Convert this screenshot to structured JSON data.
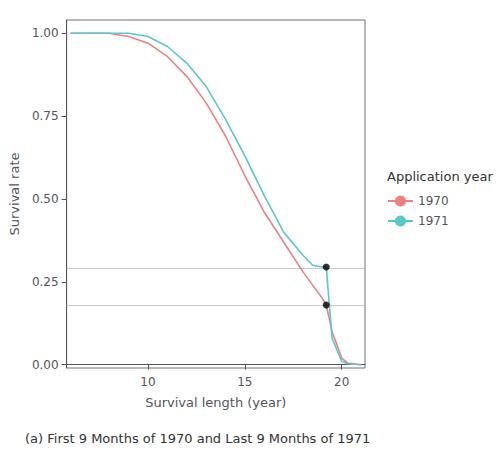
{
  "chart_data": {
    "type": "line",
    "xlabel": "Survival length (year)",
    "ylabel": "Survival rate",
    "caption": "(a) First 9 Months of 1970 and Last 9 Months of 1971",
    "legend_title": "Application year",
    "legend": "right",
    "grid": false,
    "x": [
      6,
      7,
      8,
      8.5,
      9,
      10,
      11,
      12,
      13,
      14,
      15,
      16,
      17,
      18,
      18.5,
      19,
      19.2,
      19.5,
      20,
      20.3,
      21
    ],
    "series": [
      {
        "name": "1970",
        "color": "#F08080",
        "values": [
          1.0,
          1.0,
          1.0,
          0.995,
          0.99,
          0.97,
          0.93,
          0.87,
          0.79,
          0.69,
          0.57,
          0.46,
          0.37,
          0.28,
          0.24,
          0.2,
          0.18,
          0.1,
          0.02,
          0.005,
          0.0
        ]
      },
      {
        "name": "1971",
        "color": "#5BC8C8",
        "values": [
          1.0,
          1.0,
          1.0,
          1.0,
          1.0,
          0.99,
          0.96,
          0.91,
          0.84,
          0.74,
          0.63,
          0.51,
          0.4,
          0.33,
          0.3,
          0.295,
          0.295,
          0.08,
          0.01,
          0.003,
          0.0
        ]
      }
    ],
    "hlines": {
      "values": [
        0.295,
        0.18
      ],
      "color": "#999999",
      "line_style": "dotted"
    },
    "points": {
      "x": [
        19.2,
        19.2
      ],
      "y": [
        0.295,
        0.18
      ],
      "color": "black",
      "marker": "circle"
    },
    "xlim": [
      5.8,
      21.2
    ],
    "xticks": [
      10,
      15,
      20
    ],
    "ylim": [
      -0.01,
      1.04
    ],
    "yticks": [
      {
        "value": 0.0,
        "label": "0.00"
      },
      {
        "value": 0.25,
        "label": "0.25"
      },
      {
        "value": 0.5,
        "label": "0.50"
      },
      {
        "value": 0.75,
        "label": "0.75"
      },
      {
        "value": 1.0,
        "label": "1.00"
      }
    ]
  }
}
